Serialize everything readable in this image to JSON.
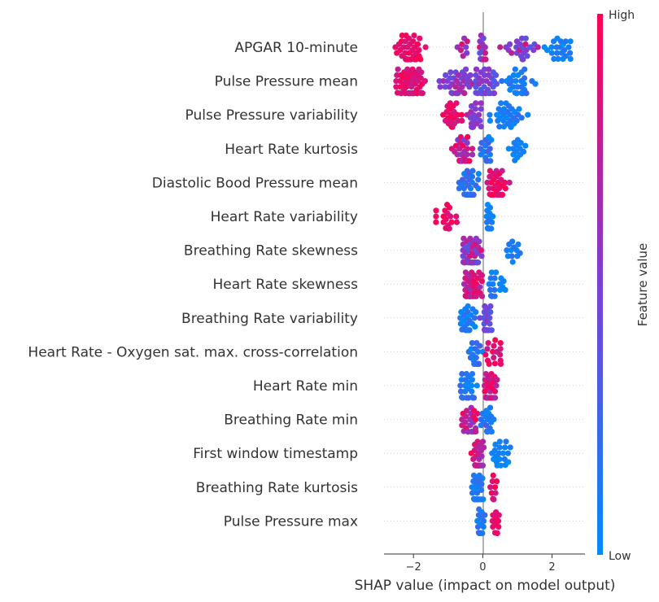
{
  "chart_data": {
    "type": "scatter",
    "subtype": "shap-beeswarm",
    "xlabel": "SHAP value (impact on model output)",
    "xticks": [
      -2,
      0,
      2
    ],
    "xlim": [
      -2.85,
      2.95
    ],
    "colorbar": {
      "title": "Feature value",
      "high_label": "High",
      "low_label": "Low",
      "high_color": "#ff0052",
      "low_color": "#008bfb"
    },
    "features": [
      {
        "name": "APGAR 10-minute",
        "clusters": [
          {
            "center": -2.1,
            "spread": 0.45,
            "count": 48,
            "value": [
              0.85,
              1.0
            ]
          },
          {
            "center": -0.5,
            "spread": 0.25,
            "count": 8,
            "value": [
              0.45,
              0.9
            ]
          },
          {
            "center": 0.0,
            "spread": 0.12,
            "count": 22,
            "value": [
              0.35,
              0.85
            ]
          },
          {
            "center": 1.05,
            "spread": 0.55,
            "count": 24,
            "value": [
              0.35,
              0.85
            ]
          },
          {
            "center": 2.2,
            "spread": 0.45,
            "count": 22,
            "value": [
              0.0,
              0.15
            ]
          }
        ]
      },
      {
        "name": "Pulse Pressure mean",
        "clusters": [
          {
            "center": -2.05,
            "spread": 0.45,
            "count": 60,
            "value": [
              0.75,
              1.0
            ]
          },
          {
            "center": -0.7,
            "spread": 0.55,
            "count": 40,
            "value": [
              0.4,
              0.75
            ]
          },
          {
            "center": 0.1,
            "spread": 0.3,
            "count": 38,
            "value": [
              0.3,
              0.6
            ]
          },
          {
            "center": 1.05,
            "spread": 0.5,
            "count": 32,
            "value": [
              0.0,
              0.2
            ]
          }
        ]
      },
      {
        "name": "Pulse Pressure variability",
        "clusters": [
          {
            "center": -0.85,
            "spread": 0.3,
            "count": 22,
            "value": [
              0.8,
              1.0
            ]
          },
          {
            "center": -0.25,
            "spread": 0.2,
            "count": 22,
            "value": [
              0.4,
              0.7
            ]
          },
          {
            "center": 0.75,
            "spread": 0.55,
            "count": 32,
            "value": [
              0.0,
              0.2
            ]
          }
        ]
      },
      {
        "name": "Heart Rate kurtosis",
        "clusters": [
          {
            "center": -0.6,
            "spread": 0.3,
            "count": 40,
            "value": [
              0.5,
              1.0
            ]
          },
          {
            "center": 0.1,
            "spread": 0.2,
            "count": 18,
            "value": [
              0.0,
              0.3
            ]
          },
          {
            "center": 1.05,
            "spread": 0.3,
            "count": 14,
            "value": [
              0.0,
              0.1
            ]
          }
        ]
      },
      {
        "name": "Diastolic Bood Pressure mean",
        "clusters": [
          {
            "center": -0.4,
            "spread": 0.28,
            "count": 40,
            "value": [
              0.0,
              0.3
            ]
          },
          {
            "center": 0.45,
            "spread": 0.32,
            "count": 34,
            "value": [
              0.75,
              1.0
            ]
          }
        ]
      },
      {
        "name": "Heart Rate variability",
        "clusters": [
          {
            "center": -1.05,
            "spread": 0.3,
            "count": 20,
            "value": [
              0.85,
              1.0
            ]
          },
          {
            "center": 0.2,
            "spread": 0.12,
            "count": 22,
            "value": [
              0.0,
              0.15
            ]
          }
        ]
      },
      {
        "name": "Breathing Rate skewness",
        "clusters": [
          {
            "center": -0.35,
            "spread": 0.35,
            "count": 60,
            "value": [
              0.35,
              0.9
            ]
          },
          {
            "center": 0.95,
            "spread": 0.35,
            "count": 12,
            "value": [
              0.0,
              0.2
            ]
          }
        ]
      },
      {
        "name": "Heart Rate skewness",
        "clusters": [
          {
            "center": -0.3,
            "spread": 0.28,
            "count": 44,
            "value": [
              0.6,
              1.0
            ]
          },
          {
            "center": 0.35,
            "spread": 0.3,
            "count": 18,
            "value": [
              0.0,
              0.2
            ]
          }
        ]
      },
      {
        "name": "Breathing Rate variability",
        "clusters": [
          {
            "center": -0.4,
            "spread": 0.25,
            "count": 26,
            "value": [
              0.0,
              0.25
            ]
          },
          {
            "center": 0.1,
            "spread": 0.18,
            "count": 24,
            "value": [
              0.3,
              0.6
            ]
          }
        ]
      },
      {
        "name": "Heart Rate - Oxygen sat. max. cross-correlation",
        "clusters": [
          {
            "center": -0.2,
            "spread": 0.2,
            "count": 22,
            "value": [
              0.0,
              0.3
            ]
          },
          {
            "center": 0.3,
            "spread": 0.22,
            "count": 16,
            "value": [
              0.75,
              1.0
            ]
          }
        ]
      },
      {
        "name": "Heart Rate min",
        "clusters": [
          {
            "center": -0.4,
            "spread": 0.25,
            "count": 28,
            "value": [
              0.0,
              0.3
            ]
          },
          {
            "center": 0.2,
            "spread": 0.25,
            "count": 30,
            "value": [
              0.6,
              1.0
            ]
          }
        ]
      },
      {
        "name": "Breathing Rate min",
        "clusters": [
          {
            "center": -0.35,
            "spread": 0.25,
            "count": 26,
            "value": [
              0.55,
              1.0
            ]
          },
          {
            "center": 0.15,
            "spread": 0.2,
            "count": 24,
            "value": [
              0.0,
              0.35
            ]
          }
        ]
      },
      {
        "name": "First window timestamp",
        "clusters": [
          {
            "center": -0.15,
            "spread": 0.18,
            "count": 30,
            "value": [
              0.6,
              1.0
            ]
          },
          {
            "center": 0.55,
            "spread": 0.35,
            "count": 20,
            "value": [
              0.0,
              0.15
            ]
          }
        ]
      },
      {
        "name": "Breathing Rate kurtosis",
        "clusters": [
          {
            "center": -0.15,
            "spread": 0.2,
            "count": 34,
            "value": [
              0.0,
              0.2
            ]
          },
          {
            "center": 0.3,
            "spread": 0.18,
            "count": 12,
            "value": [
              0.8,
              1.0
            ]
          }
        ]
      },
      {
        "name": "Pulse Pressure max",
        "clusters": [
          {
            "center": -0.05,
            "spread": 0.12,
            "count": 20,
            "value": [
              0.0,
              0.25
            ]
          },
          {
            "center": 0.4,
            "spread": 0.18,
            "count": 12,
            "value": [
              0.85,
              1.0
            ]
          }
        ]
      }
    ]
  }
}
